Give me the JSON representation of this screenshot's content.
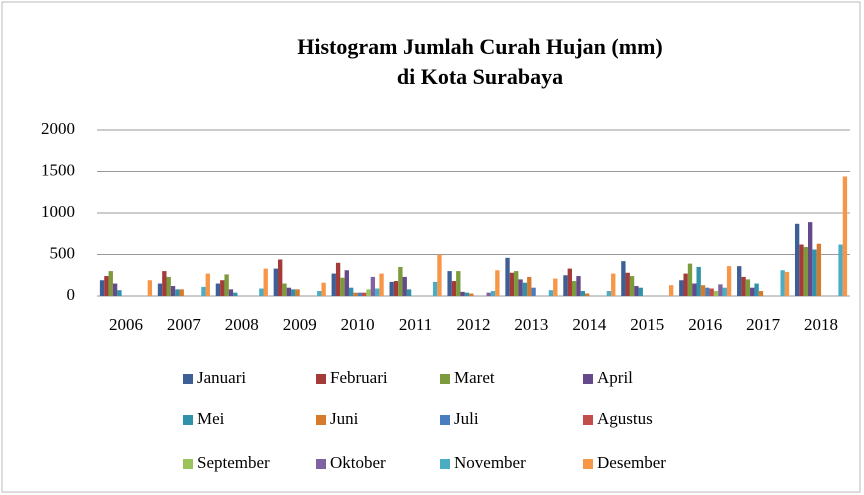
{
  "chart_data": {
    "type": "bar",
    "title": [
      "Histogram Jumlah Curah Hujan (mm)",
      "di Kota Surabaya"
    ],
    "categories": [
      "2006",
      "2007",
      "2008",
      "2009",
      "2010",
      "2011",
      "2012",
      "2013",
      "2014",
      "2015",
      "2016",
      "2017",
      "2018"
    ],
    "ylim": [
      0,
      2000
    ],
    "yticks": [
      0,
      500,
      1000,
      1500,
      2000
    ],
    "grid": true,
    "series": [
      {
        "name": "Januari",
        "color": "#3d5f96",
        "values": [
          190,
          150,
          150,
          330,
          270,
          170,
          300,
          460,
          250,
          420,
          190,
          360,
          870
        ]
      },
      {
        "name": "Februari",
        "color": "#a33b38",
        "values": [
          240,
          300,
          190,
          440,
          400,
          180,
          180,
          280,
          330,
          280,
          270,
          230,
          620
        ]
      },
      {
        "name": "Maret",
        "color": "#7d9a3d",
        "values": [
          300,
          230,
          260,
          150,
          220,
          350,
          300,
          300,
          180,
          240,
          390,
          200,
          590
        ]
      },
      {
        "name": "April",
        "color": "#65498a",
        "values": [
          150,
          120,
          80,
          100,
          310,
          230,
          50,
          200,
          240,
          120,
          150,
          100,
          890
        ]
      },
      {
        "name": "Mei",
        "color": "#2f92aa",
        "values": [
          70,
          80,
          40,
          80,
          100,
          80,
          40,
          160,
          60,
          100,
          350,
          150,
          560
        ]
      },
      {
        "name": "Juni",
        "color": "#d67b2c",
        "values": [
          0,
          80,
          0,
          80,
          40,
          0,
          30,
          230,
          30,
          0,
          130,
          60,
          630
        ]
      },
      {
        "name": "Juli",
        "color": "#4a7dbe",
        "values": [
          0,
          0,
          0,
          0,
          40,
          0,
          0,
          100,
          0,
          0,
          100,
          0,
          0
        ]
      },
      {
        "name": "Agustus",
        "color": "#c24e4b",
        "values": [
          0,
          0,
          0,
          0,
          40,
          0,
          0,
          0,
          0,
          0,
          90,
          0,
          0
        ]
      },
      {
        "name": "September",
        "color": "#9bc25b",
        "values": [
          0,
          0,
          0,
          0,
          80,
          0,
          0,
          0,
          0,
          0,
          60,
          0,
          0
        ]
      },
      {
        "name": "Oktober",
        "color": "#7f63a1",
        "values": [
          0,
          0,
          0,
          0,
          230,
          0,
          40,
          0,
          0,
          0,
          140,
          0,
          0
        ]
      },
      {
        "name": "November",
        "color": "#4bacc6",
        "values": [
          0,
          110,
          90,
          60,
          90,
          170,
          60,
          70,
          60,
          0,
          100,
          310,
          620
        ]
      },
      {
        "name": "Desember",
        "color": "#f79646",
        "values": [
          190,
          270,
          330,
          160,
          270,
          500,
          310,
          210,
          270,
          130,
          360,
          290,
          1440
        ]
      }
    ]
  }
}
